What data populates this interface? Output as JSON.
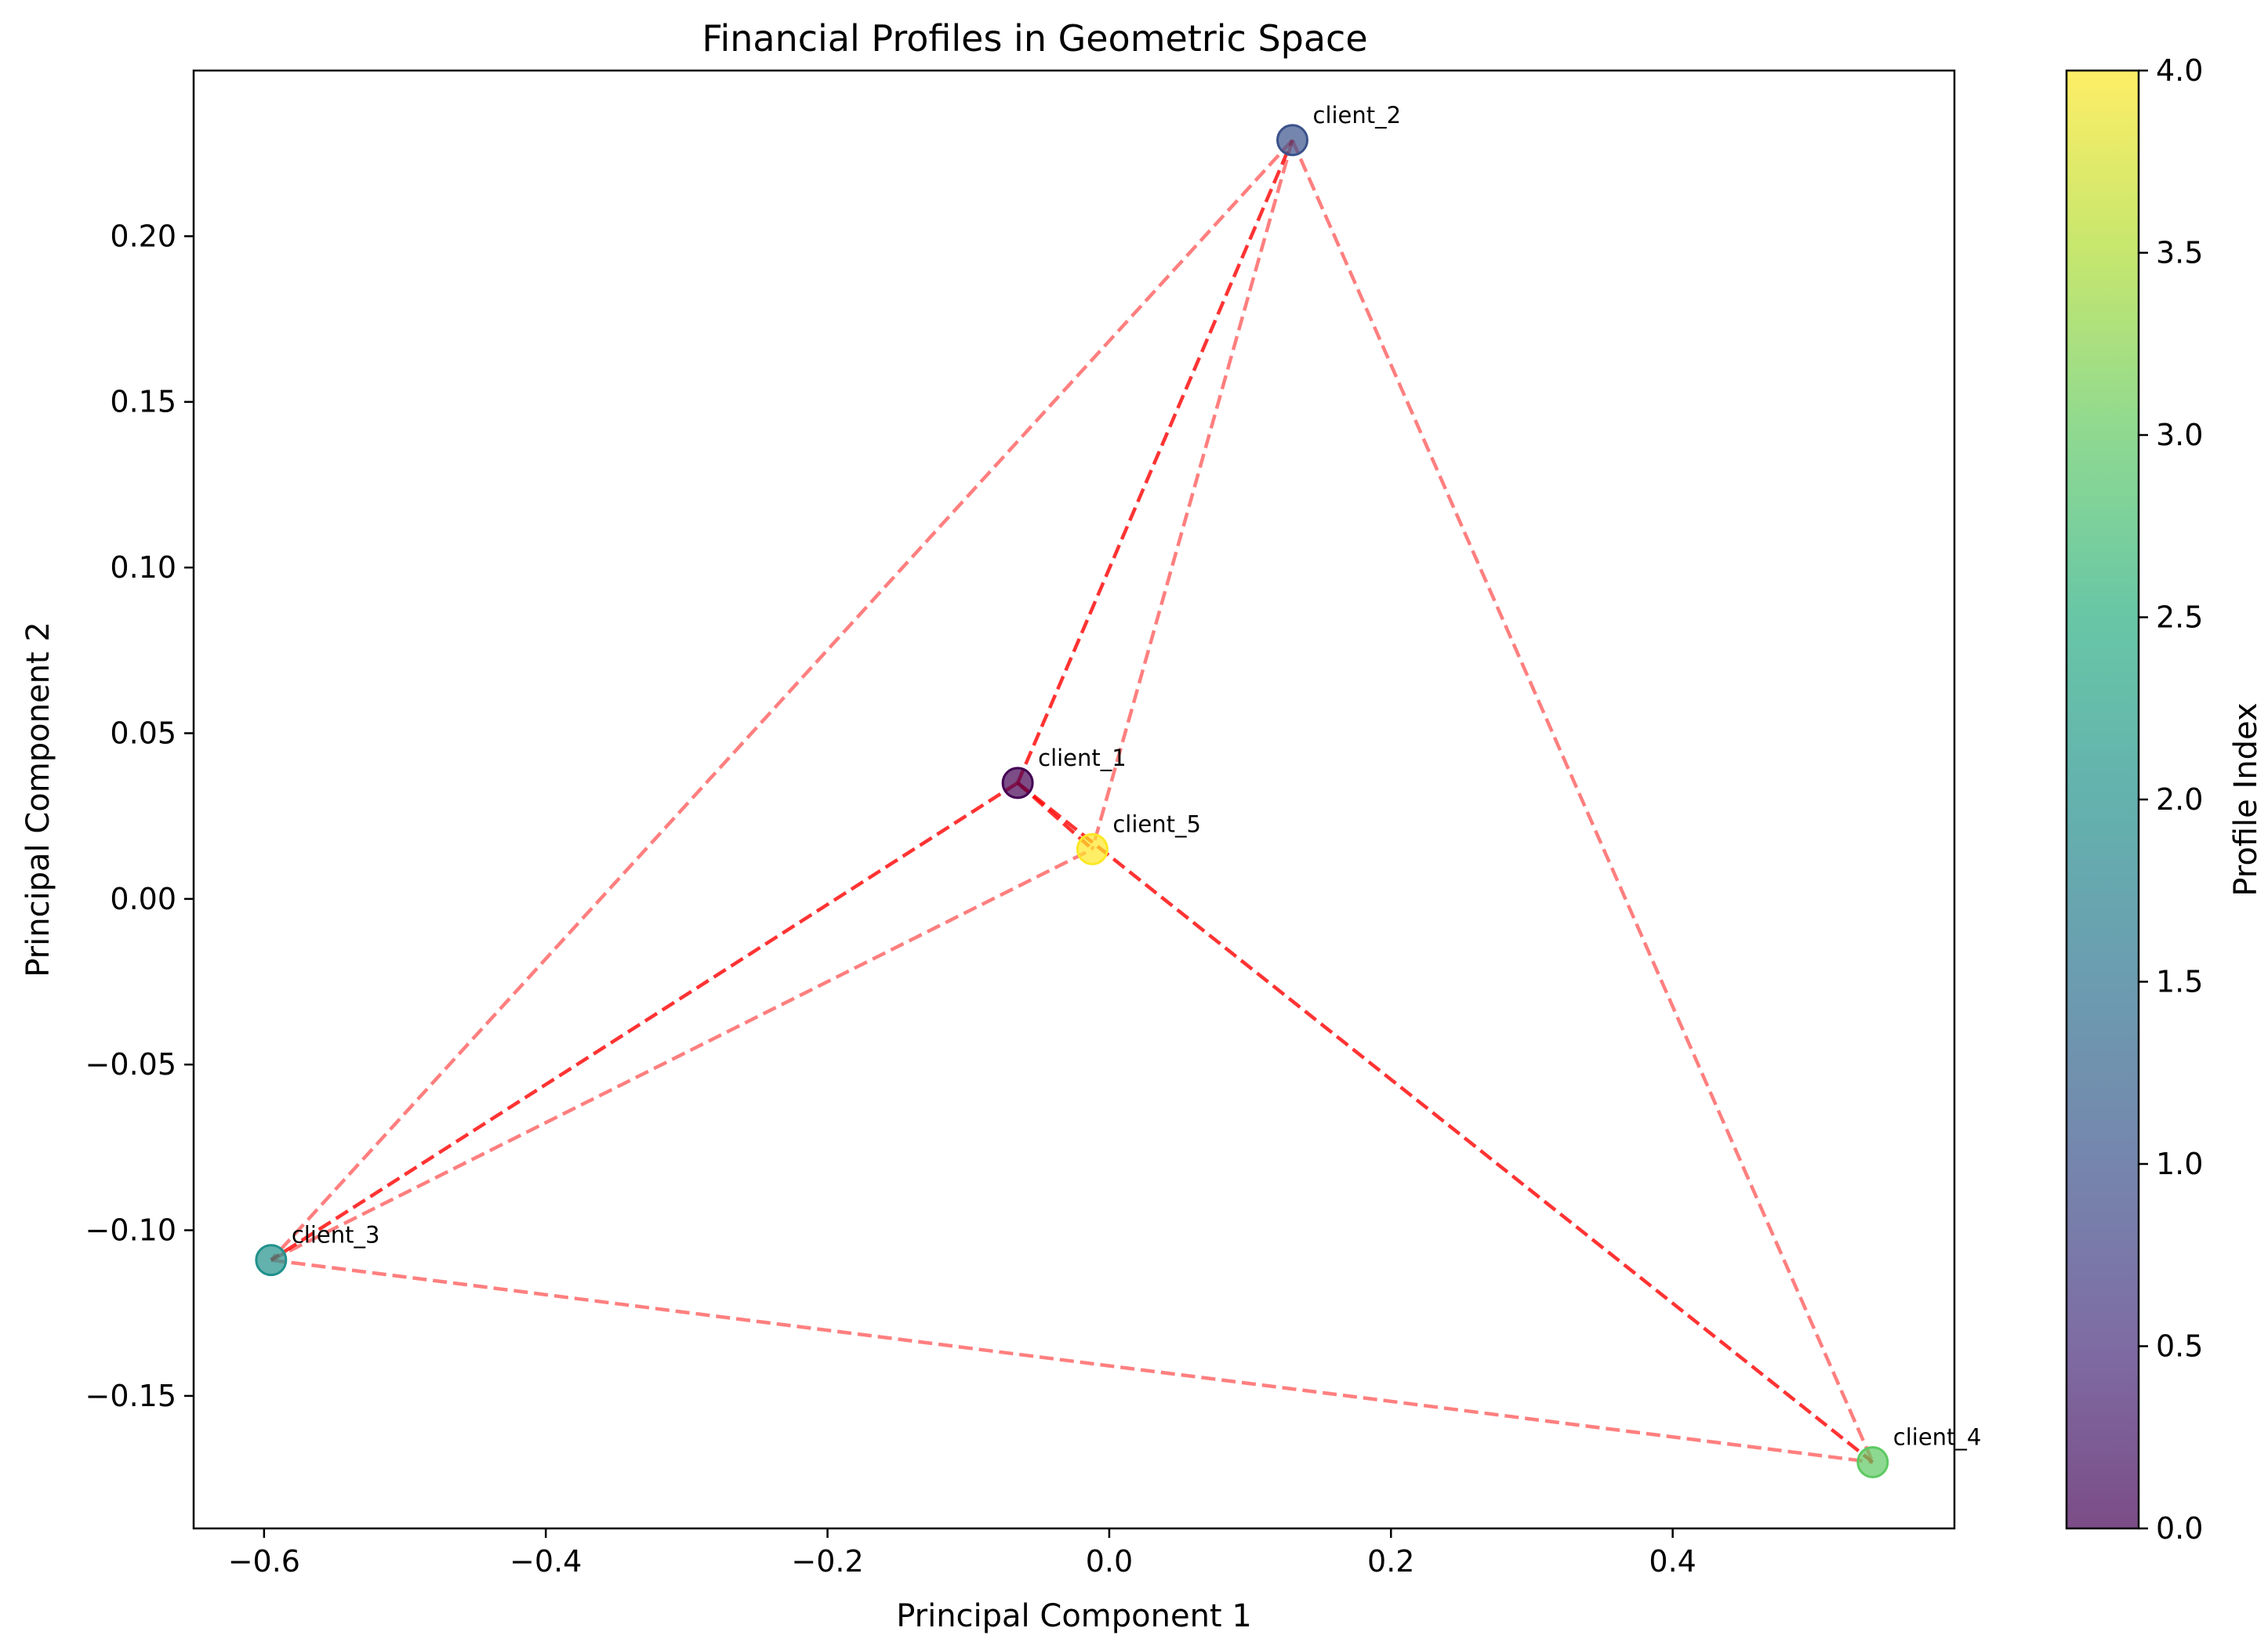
{
  "chart_data": {
    "type": "scatter",
    "title": "Financial Profiles in Geometric Space",
    "xlabel": "Principal Component 1",
    "ylabel": "Principal Component 2",
    "xlim": [
      -0.65,
      0.6
    ],
    "ylim": [
      -0.19,
      0.25
    ],
    "x_ticks": [
      -0.6,
      -0.4,
      -0.2,
      0.0,
      0.2,
      0.4
    ],
    "x_tick_labels": [
      "−0.6",
      "−0.4",
      "−0.2",
      "0.0",
      "0.2",
      "0.4"
    ],
    "y_ticks": [
      -0.15,
      -0.1,
      -0.05,
      0.0,
      0.05,
      0.1,
      0.15,
      0.2
    ],
    "y_tick_labels": [
      "−0.15",
      "−0.10",
      "−0.05",
      "0.00",
      "0.05",
      "0.10",
      "0.15",
      "0.20"
    ],
    "grid": false,
    "points": [
      {
        "label": "client_1",
        "x": -0.065,
        "y": 0.035,
        "color_value": 0
      },
      {
        "label": "client_2",
        "x": 0.13,
        "y": 0.229,
        "color_value": 1
      },
      {
        "label": "client_3",
        "x": -0.595,
        "y": -0.109,
        "color_value": 2
      },
      {
        "label": "client_4",
        "x": 0.542,
        "y": -0.17,
        "color_value": 3
      },
      {
        "label": "client_5",
        "x": -0.012,
        "y": 0.015,
        "color_value": 4
      }
    ],
    "edges": [
      {
        "from": 0,
        "to": 1,
        "color": "#ff0000",
        "opacity": 0.8
      },
      {
        "from": 0,
        "to": 2,
        "color": "#ff0000",
        "opacity": 0.8
      },
      {
        "from": 0,
        "to": 3,
        "color": "#ff0000",
        "opacity": 0.8
      },
      {
        "from": 0,
        "to": 4,
        "color": "#ff0000",
        "opacity": 0.8
      },
      {
        "from": 1,
        "to": 2,
        "color": "#ff0000",
        "opacity": 0.5
      },
      {
        "from": 1,
        "to": 3,
        "color": "#ff0000",
        "opacity": 0.5
      },
      {
        "from": 1,
        "to": 4,
        "color": "#ff0000",
        "opacity": 0.5
      },
      {
        "from": 2,
        "to": 3,
        "color": "#ff0000",
        "opacity": 0.5
      },
      {
        "from": 2,
        "to": 4,
        "color": "#ff0000",
        "opacity": 0.5
      }
    ],
    "colorbar": {
      "label": "Profile Index",
      "colormap": "viridis",
      "range": [
        0,
        4
      ],
      "ticks": [
        0.0,
        0.5,
        1.0,
        1.5,
        2.0,
        2.5,
        3.0,
        3.5,
        4.0
      ],
      "tick_labels": [
        "0.0",
        "0.5",
        "1.0",
        "1.5",
        "2.0",
        "2.5",
        "3.0",
        "3.5",
        "4.0"
      ],
      "alpha": 0.7
    }
  }
}
